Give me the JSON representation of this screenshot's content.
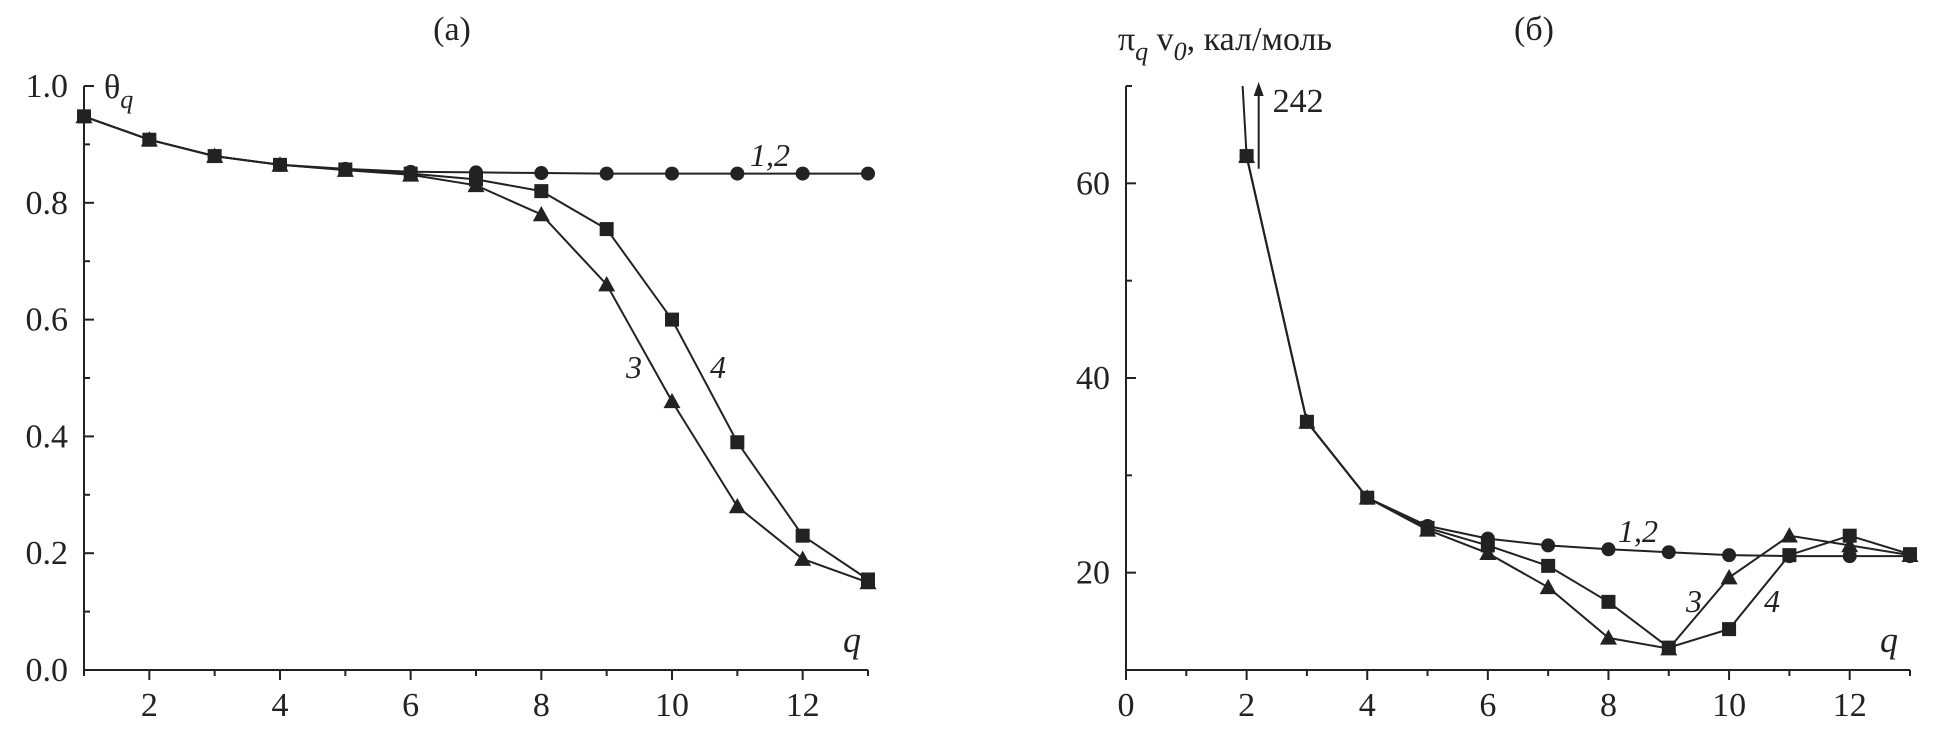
{
  "chart_data": [
    {
      "type": "line",
      "panel_title": "(a)",
      "ylabel_main": "θ",
      "ylabel_sub": "q",
      "xlabel": "q",
      "xlim": [
        1,
        13
      ],
      "ylim": [
        0.0,
        1.0
      ],
      "x_ticks": [
        2,
        4,
        6,
        8,
        10,
        12
      ],
      "x_tick_labels": [
        "2",
        "4",
        "6",
        "8",
        "10",
        "12"
      ],
      "y_ticks": [
        0.0,
        0.2,
        0.4,
        0.6,
        0.8,
        1.0
      ],
      "y_tick_labels": [
        "0.0",
        "0.2",
        "0.4",
        "0.6",
        "0.8",
        "1.0"
      ],
      "series": [
        {
          "label": "1,2",
          "marker": "circle",
          "x": [
            1,
            2,
            3,
            4,
            5,
            6,
            7,
            8,
            9,
            10,
            11,
            12,
            13
          ],
          "y": [
            0.948,
            0.908,
            0.88,
            0.865,
            0.858,
            0.853,
            0.852,
            0.851,
            0.85,
            0.85,
            0.85,
            0.85,
            0.85
          ]
        },
        {
          "label": "3",
          "marker": "triangle",
          "x": [
            1,
            2,
            3,
            4,
            5,
            6,
            7,
            8,
            9,
            10,
            11,
            12,
            13
          ],
          "y": [
            0.948,
            0.908,
            0.88,
            0.865,
            0.856,
            0.848,
            0.83,
            0.78,
            0.66,
            0.46,
            0.28,
            0.19,
            0.15
          ]
        },
        {
          "label": "4",
          "marker": "square",
          "x": [
            1,
            2,
            3,
            4,
            5,
            6,
            7,
            8,
            9,
            10,
            11,
            12,
            13
          ],
          "y": [
            0.948,
            0.908,
            0.88,
            0.865,
            0.857,
            0.85,
            0.84,
            0.82,
            0.755,
            0.6,
            0.39,
            0.23,
            0.155
          ]
        }
      ]
    },
    {
      "type": "line",
      "panel_title": "(б)",
      "ylabel_main": "π",
      "ylabel_sub": "q",
      "ylabel_v": " v",
      "ylabel_v_sub": "0",
      "ylabel_unit": ", кал/моль",
      "xlabel": "q",
      "xlim": [
        0,
        13
      ],
      "ylim": [
        10,
        70
      ],
      "x_ticks": [
        0,
        2,
        4,
        6,
        8,
        10,
        12
      ],
      "x_tick_labels": [
        "0",
        "2",
        "4",
        "6",
        "8",
        "10",
        "12"
      ],
      "y_ticks": [
        20,
        40,
        60
      ],
      "y_tick_labels": [
        "20",
        "40",
        "60"
      ],
      "annotation": {
        "text": "242",
        "arrow_x": 2.2,
        "arrow_y_from": 61.5,
        "arrow_y_to": 70
      },
      "series": [
        {
          "label": "1,2",
          "marker": "circle",
          "x": [
            2,
            3,
            4,
            5,
            6,
            7,
            8,
            9,
            10,
            11,
            12,
            13
          ],
          "y": [
            62.8,
            35.5,
            27.7,
            24.8,
            23.5,
            22.8,
            22.4,
            22.1,
            21.8,
            21.7,
            21.7,
            21.7
          ]
        },
        {
          "label": "3",
          "marker": "triangle",
          "x": [
            2,
            3,
            4,
            5,
            6,
            7,
            8,
            9,
            10,
            11,
            12,
            13
          ],
          "y": [
            62.8,
            35.5,
            27.7,
            24.4,
            22.0,
            18.5,
            13.3,
            12.2,
            19.5,
            23.8,
            22.8,
            21.8
          ]
        },
        {
          "label": "4",
          "marker": "square",
          "x": [
            2,
            3,
            4,
            5,
            6,
            7,
            8,
            9,
            10,
            11,
            12,
            13
          ],
          "y": [
            62.8,
            35.5,
            27.7,
            24.6,
            22.8,
            20.7,
            17.0,
            12.3,
            14.2,
            21.8,
            23.8,
            21.9
          ]
        }
      ]
    }
  ]
}
